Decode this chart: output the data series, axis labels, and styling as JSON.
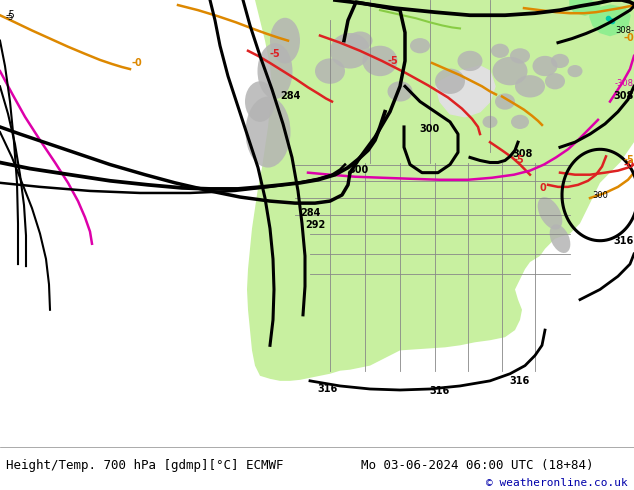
{
  "title_left": "Height/Temp. 700 hPa [gdmp][°C] ECMWF",
  "title_right": "Mo 03-06-2024 06:00 UTC (18+84)",
  "copyright": "© weatheronline.co.uk",
  "bg_color": "#e8e8e8",
  "ocean_color": "#e0e0e0",
  "land_green": "#c8f0a0",
  "land_bright_green": "#90ee90",
  "land_dark_green": "#00cc00",
  "gray_terrain": "#b4b4b4",
  "footer_bg": "#ffffff",
  "title_font_size": 9,
  "copyright_font_size": 8,
  "height_line_color": "#000000",
  "temp_red_color": "#dd2222",
  "temp_orange_color": "#dd8800",
  "temp_magenta_color": "#dd00aa",
  "temp_green_color": "#00bb00"
}
